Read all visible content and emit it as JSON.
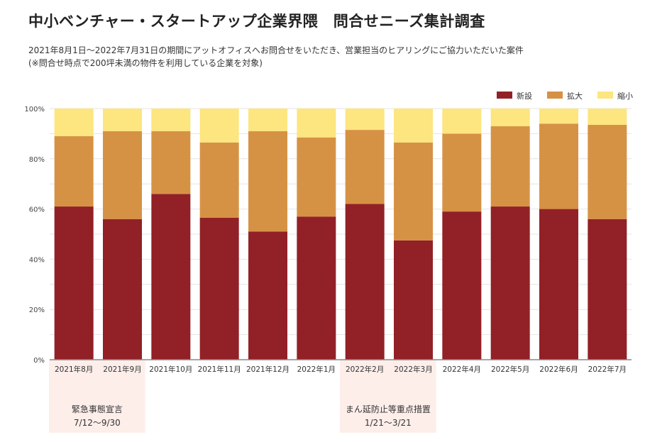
{
  "chart_data": {
    "type": "bar",
    "stacked": true,
    "title": "中小ベンチャー・スタートアップ企業界隈　問合せニーズ集計調査",
    "subtitle": [
      "2021年8月1日～2022年7月31日の期間にアットオフィスへお問合せをいただき、営業担当のヒアリングにご協力いただいた案件",
      "(※問合せ時点で200坪未満の物件を利用している企業を対象)"
    ],
    "categories": [
      "2021年8月",
      "2021年9月",
      "2021年10月",
      "2021年11月",
      "2021年12月",
      "2022年1月",
      "2022年2月",
      "2022年3月",
      "2022年4月",
      "2022年5月",
      "2022年6月",
      "2022年7月"
    ],
    "series": [
      {
        "name": "新設",
        "color": "#912126",
        "values": [
          61,
          56,
          66,
          56.5,
          51,
          57,
          62,
          47.5,
          59,
          61,
          60,
          56
        ]
      },
      {
        "name": "拡大",
        "color": "#d69244",
        "values": [
          28,
          35,
          25,
          30,
          40,
          31.5,
          29.5,
          39,
          31,
          32,
          34,
          37.5
        ]
      },
      {
        "name": "縮小",
        "color": "#fde57f",
        "values": [
          11,
          9,
          9,
          13.5,
          9,
          11.5,
          8.5,
          13.5,
          10,
          7,
          6,
          6.5
        ]
      }
    ],
    "ylim": [
      0,
      100
    ],
    "yticks": [
      "0%",
      "20%",
      "40%",
      "60%",
      "80%",
      "100%"
    ],
    "legend": "top-right",
    "grid": true,
    "annotations": [
      {
        "label": "緊急事態宣言",
        "range": "7/12～9/30",
        "from": "2021年8月",
        "to": "2021年9月"
      },
      {
        "label": "まん延防止等重点措置",
        "range": "1/21～3/21",
        "from": "2022年2月",
        "to": "2022年3月"
      }
    ]
  }
}
